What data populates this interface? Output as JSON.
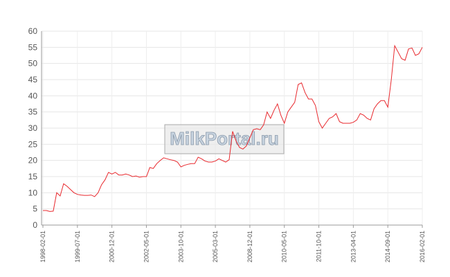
{
  "chart_data": {
    "type": "line",
    "watermark": "MilkPortal.ru",
    "categories": [
      "1998-02-01",
      null,
      null,
      null,
      null,
      null,
      null,
      null,
      null,
      null,
      "1999-07-01",
      null,
      null,
      null,
      null,
      null,
      null,
      null,
      null,
      null,
      "2000-12-01",
      null,
      null,
      null,
      null,
      null,
      null,
      null,
      null,
      null,
      "2002-05-01",
      null,
      null,
      null,
      null,
      null,
      null,
      null,
      null,
      null,
      "2003-10-01",
      null,
      null,
      null,
      null,
      null,
      null,
      null,
      null,
      null,
      "2005-03-01",
      null,
      null,
      null,
      null,
      null,
      null,
      null,
      null,
      null,
      "2008-12-01",
      null,
      null,
      null,
      null,
      null,
      null,
      null,
      null,
      null,
      "2010-05-01",
      null,
      null,
      null,
      null,
      null,
      null,
      null,
      null,
      null,
      "2011-10-01",
      null,
      null,
      null,
      null,
      null,
      null,
      null,
      null,
      null,
      "2013-04-01",
      null,
      null,
      null,
      null,
      null,
      null,
      null,
      null,
      null,
      "2014-09-01",
      null,
      null,
      null,
      null,
      null,
      null,
      null,
      null,
      null,
      "2016-02-01"
    ],
    "series": [
      {
        "color": "#e8282d",
        "values": [
          4.5,
          4.5,
          4.2,
          4.3,
          10,
          9,
          12.8,
          12,
          11,
          10,
          9.5,
          9.3,
          9.2,
          9.2,
          9.3,
          8.8,
          10,
          12.5,
          14,
          16.3,
          15.8,
          16.3,
          15.5,
          15.5,
          15.8,
          15.5,
          15,
          15.2,
          14.8,
          15,
          15,
          17.8,
          17.5,
          19,
          20,
          20.8,
          20.5,
          20.2,
          20,
          19.5,
          18,
          18.5,
          18.8,
          19,
          19,
          21,
          20.5,
          19.8,
          19.5,
          19.5,
          19.8,
          20.5,
          20,
          19.5,
          20.2,
          29,
          26,
          24,
          23.5,
          24.5,
          27,
          29.5,
          29.8,
          29.5,
          31,
          35,
          33,
          35.5,
          37.5,
          34,
          31.5,
          35,
          36.5,
          38,
          43.5,
          44,
          41,
          39,
          39,
          37,
          32,
          30,
          31.5,
          33,
          33.5,
          34.5,
          32,
          31.5,
          31.5,
          31.5,
          31.8,
          32.5,
          34.5,
          34,
          33,
          32.5,
          36,
          37.5,
          38.5,
          38.5,
          36.5,
          45,
          55.5,
          53.5,
          51.5,
          51,
          54.5,
          54.8,
          52.5,
          53,
          55
        ]
      }
    ],
    "ylim": [
      0,
      60
    ],
    "yticks": [
      0,
      5,
      10,
      15,
      20,
      25,
      30,
      35,
      40,
      45,
      50,
      55,
      60
    ],
    "grid": true
  }
}
